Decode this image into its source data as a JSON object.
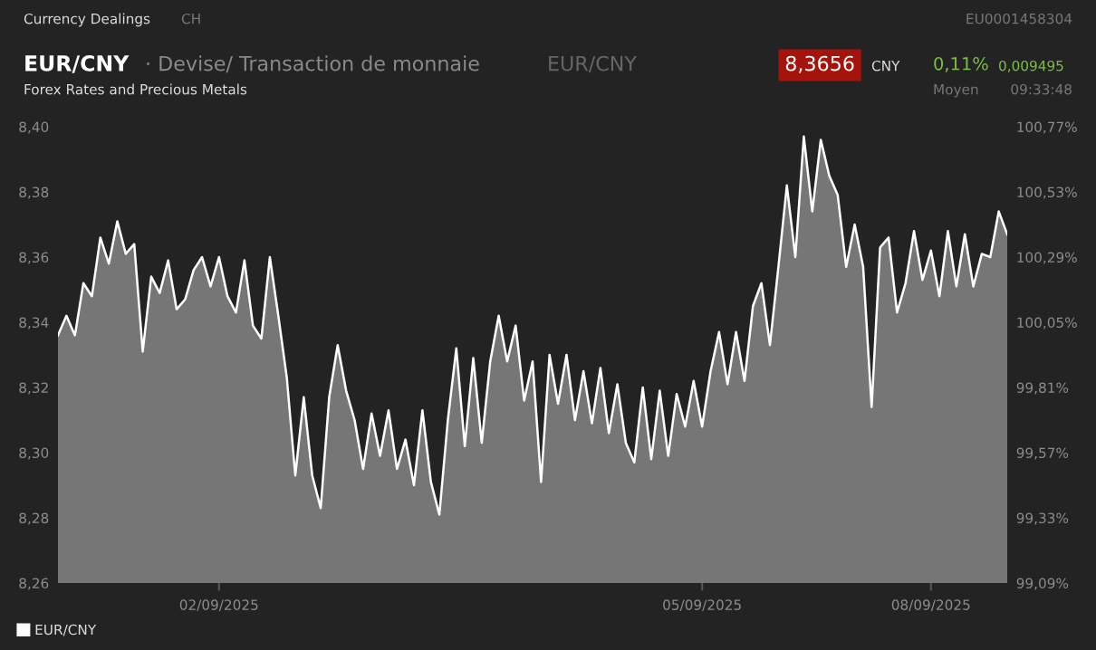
{
  "chart_data": {
    "type": "area",
    "title": "EUR/CNY",
    "subtitle": "· Devise/ Transaction de monnaie",
    "annotations": [
      "Currency Dealings",
      "CH",
      "EU0001458304",
      "EUR/CNY",
      "8,3656",
      "CNY",
      "0,11%",
      "0,009495",
      "Forex Rates and Precious Metals",
      "Moyen",
      "09:33:48"
    ],
    "series": [
      {
        "name": "EUR/CNY",
        "color": "#ffffff",
        "values": [
          8.336,
          8.342,
          8.336,
          8.352,
          8.348,
          8.366,
          8.358,
          8.371,
          8.361,
          8.364,
          8.331,
          8.354,
          8.349,
          8.359,
          8.344,
          8.347,
          8.356,
          8.36,
          8.351,
          8.36,
          8.348,
          8.343,
          8.359,
          8.339,
          8.335,
          8.36,
          8.342,
          8.323,
          8.293,
          8.317,
          8.293,
          8.283,
          8.317,
          8.333,
          8.319,
          8.31,
          8.295,
          8.312,
          8.299,
          8.313,
          8.295,
          8.304,
          8.29,
          8.313,
          8.291,
          8.281,
          8.31,
          8.332,
          8.302,
          8.329,
          8.303,
          8.328,
          8.342,
          8.328,
          8.339,
          8.316,
          8.328,
          8.291,
          8.33,
          8.315,
          8.33,
          8.31,
          8.325,
          8.309,
          8.326,
          8.306,
          8.321,
          8.303,
          8.297,
          8.32,
          8.298,
          8.319,
          8.299,
          8.318,
          8.308,
          8.322,
          8.308,
          8.325,
          8.337,
          8.321,
          8.337,
          8.322,
          8.345,
          8.352,
          8.333,
          8.357,
          8.382,
          8.36,
          8.397,
          8.374,
          8.396,
          8.385,
          8.379,
          8.357,
          8.37,
          8.357,
          8.314,
          8.363,
          8.366,
          8.343,
          8.352,
          8.368,
          8.353,
          8.362,
          8.348,
          8.368,
          8.351,
          8.367,
          8.351,
          8.361,
          8.36,
          8.374,
          8.367
        ]
      }
    ],
    "categories": [
      null,
      null,
      null,
      null,
      null,
      null,
      null,
      null,
      null,
      null,
      null,
      null,
      null,
      null,
      null,
      null,
      null,
      null,
      null,
      "02/09/2025",
      null,
      null,
      null,
      null,
      null,
      null,
      null,
      null,
      null,
      null,
      null,
      null,
      null,
      null,
      null,
      null,
      null,
      null,
      null,
      null,
      null,
      null,
      null,
      null,
      null,
      null,
      null,
      null,
      null,
      null,
      null,
      null,
      null,
      null,
      null,
      null,
      null,
      null,
      null,
      null,
      null,
      null,
      null,
      null,
      null,
      null,
      null,
      null,
      null,
      null,
      null,
      null,
      null,
      null,
      null,
      null,
      "05/09/2025",
      null,
      null,
      null,
      null,
      null,
      null,
      null,
      null,
      null,
      null,
      null,
      null,
      null,
      null,
      null,
      null,
      null,
      null,
      null,
      null,
      null,
      null,
      null,
      null,
      null,
      null,
      "08/09/2025",
      null,
      null,
      null,
      null,
      null,
      null,
      null,
      null,
      null
    ],
    "ylim": [
      8.26,
      8.4
    ],
    "yticks": [
      {
        "value": 8.26,
        "label": "8,26"
      },
      {
        "value": 8.28,
        "label": "8,28"
      },
      {
        "value": 8.3,
        "label": "8,30"
      },
      {
        "value": 8.32,
        "label": "8,32"
      },
      {
        "value": 8.34,
        "label": "8,34"
      },
      {
        "value": 8.36,
        "label": "8,36"
      },
      {
        "value": 8.38,
        "label": "8,38"
      },
      {
        "value": 8.4,
        "label": "8,40"
      }
    ],
    "y2lim": [
      99.09,
      100.77
    ],
    "y2ticks": [
      {
        "value": 99.09,
        "label": "99,09%"
      },
      {
        "value": 99.33,
        "label": "99,33%"
      },
      {
        "value": 99.57,
        "label": "99,57%"
      },
      {
        "value": 99.81,
        "label": "99,81%"
      },
      {
        "value": 100.05,
        "label": "100,05%"
      },
      {
        "value": 100.29,
        "label": "100,29%"
      },
      {
        "value": 100.53,
        "label": "100,53%"
      },
      {
        "value": 100.77,
        "label": "100,77%"
      }
    ],
    "legend": "bottom left"
  }
}
